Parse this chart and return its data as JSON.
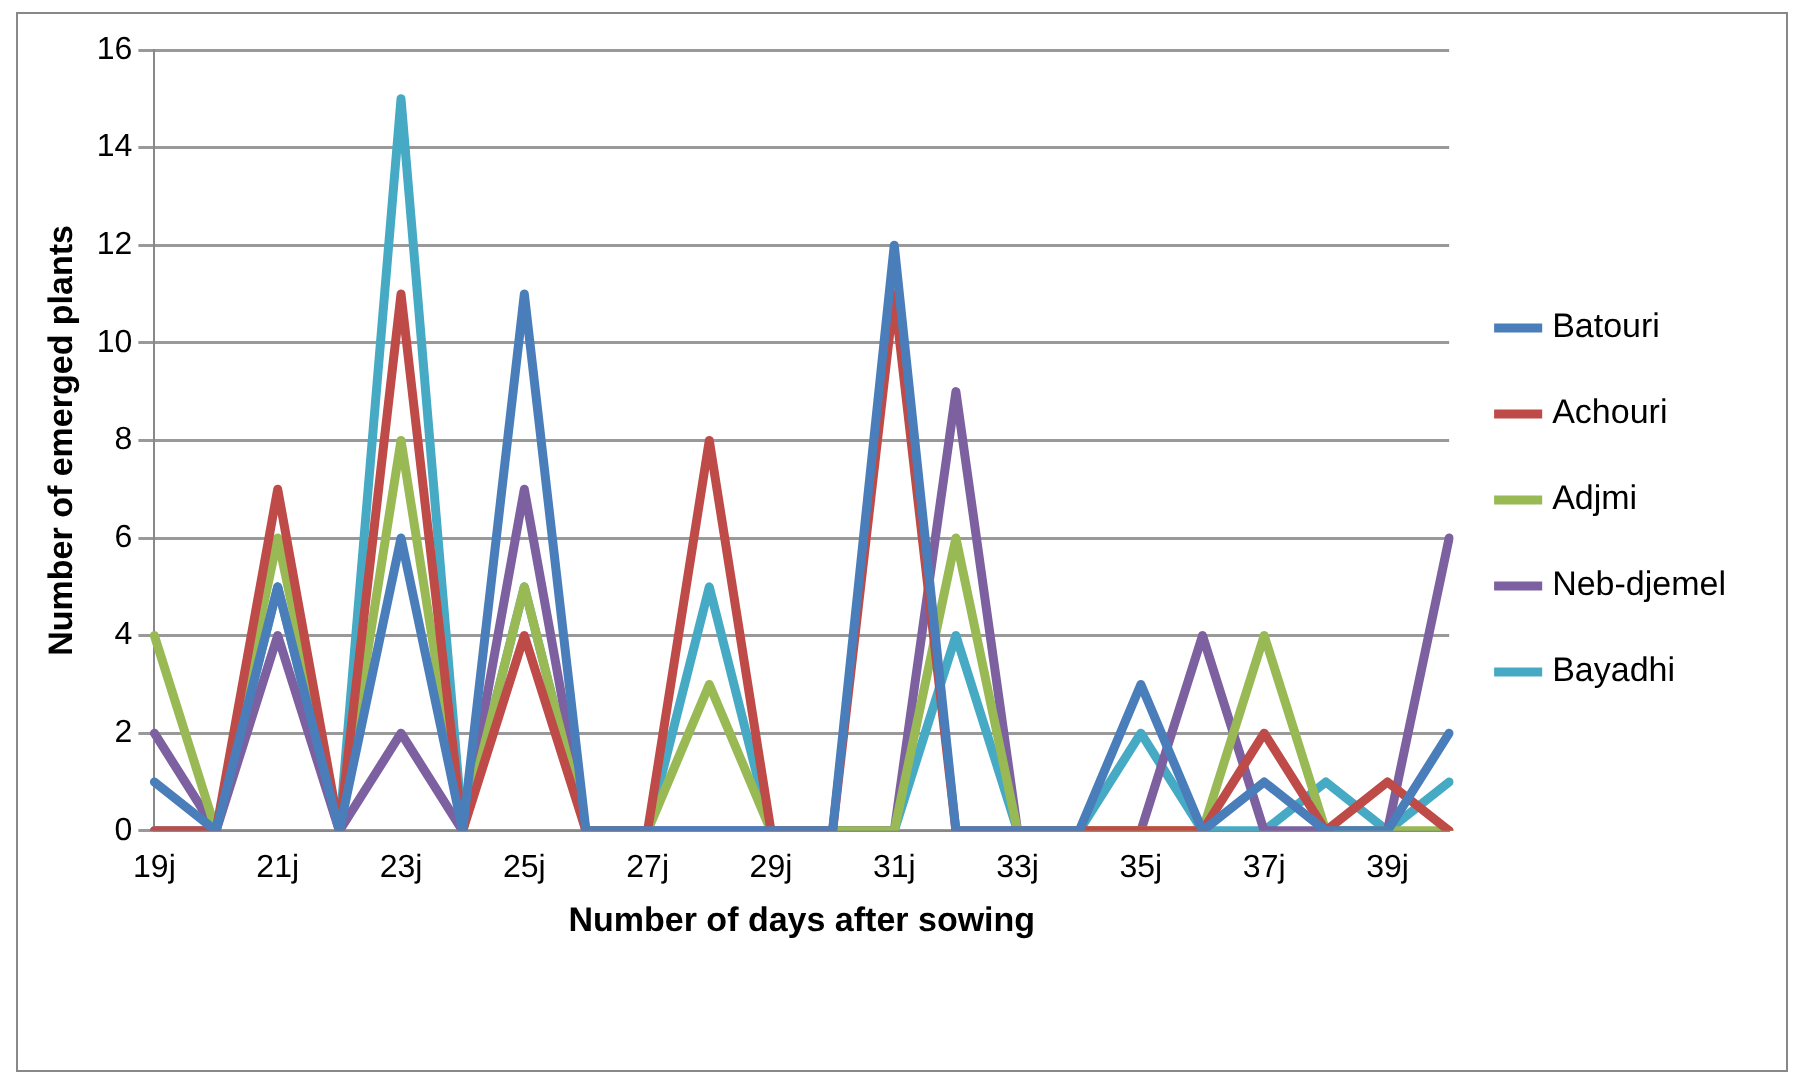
{
  "chart_data": {
    "type": "line",
    "xlabel": "Number of days after sowing",
    "ylabel": "Number of emerged plants",
    "categories": [
      "19j",
      null,
      "21j",
      null,
      "23j",
      null,
      "25j",
      null,
      "27j",
      null,
      "29j",
      null,
      "31j",
      null,
      "33j",
      null,
      "35j",
      null,
      "37j",
      null,
      "39j",
      null
    ],
    "series": [
      {
        "name": "Batouri",
        "color": "#4a7ebb",
        "values": [
          1,
          0,
          5,
          0,
          6,
          0,
          11,
          0,
          0,
          0,
          0,
          0,
          12,
          0,
          0,
          0,
          3,
          0,
          1,
          0,
          0,
          2
        ]
      },
      {
        "name": "Achouri",
        "color": "#be4b48",
        "values": [
          0,
          0,
          7,
          0,
          11,
          0,
          4,
          0,
          0,
          8,
          0,
          0,
          11,
          0,
          0,
          0,
          0,
          0,
          2,
          0,
          1,
          0
        ]
      },
      {
        "name": "Adjmi",
        "color": "#98b954",
        "values": [
          4,
          0,
          6,
          0,
          8,
          0,
          5,
          0,
          0,
          3,
          0,
          0,
          0,
          6,
          0,
          0,
          0,
          0,
          4,
          0,
          0,
          0
        ]
      },
      {
        "name": "Neb-djemel",
        "color": "#7d60a0",
        "values": [
          2,
          0,
          4,
          0,
          2,
          0,
          7,
          0,
          0,
          0,
          0,
          0,
          0,
          9,
          0,
          0,
          0,
          4,
          0,
          0,
          0,
          6
        ]
      },
      {
        "name": "Bayadhi",
        "color": "#46aac5",
        "values": [
          0,
          0,
          5,
          0,
          15,
          0,
          5,
          0,
          0,
          5,
          0,
          0,
          0,
          4,
          0,
          0,
          2,
          0,
          0,
          1,
          0,
          1
        ]
      }
    ],
    "ylim": [
      0,
      16
    ],
    "yticks": [
      0,
      2,
      4,
      6,
      8,
      10,
      12,
      14,
      16
    ],
    "grid": "y",
    "legend": "right",
    "marker": "none",
    "line_style": "solid"
  }
}
